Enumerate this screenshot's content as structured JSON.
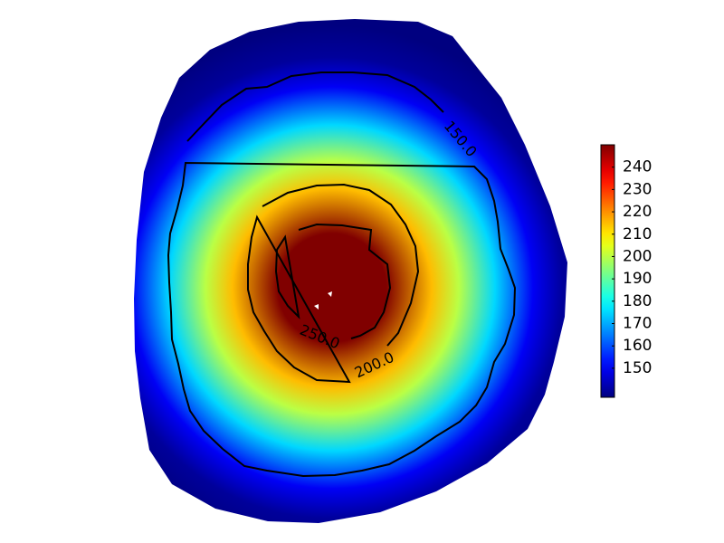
{
  "chart_data": {
    "type": "heatmap",
    "title": "",
    "xlabel": "",
    "ylabel": "",
    "colormap": "jet",
    "value_range": [
      137,
      250
    ],
    "peak_value": 250,
    "edge_value": 137,
    "contour_levels": [
      {
        "value": 150.0,
        "label": "150.0"
      },
      {
        "value": 200.0,
        "label": "200.0"
      },
      {
        "value": 250.0,
        "label": "250.0"
      }
    ],
    "colorbar": {
      "min": 137,
      "max": 250,
      "ticks": [
        150,
        160,
        170,
        180,
        190,
        200,
        210,
        220,
        230,
        240
      ],
      "tick_labels": [
        "150",
        "160",
        "170",
        "180",
        "190",
        "200",
        "210",
        "220",
        "230",
        "240"
      ]
    },
    "axes_visible": false,
    "grid": false
  }
}
